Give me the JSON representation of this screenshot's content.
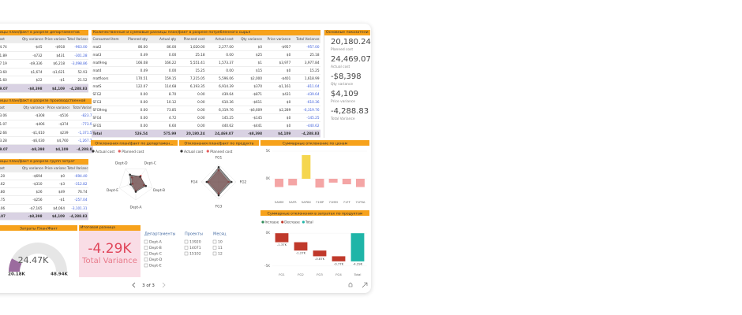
{
  "tables": [
    {
      "title": "ицы план/факт в разрезе департаментов",
      "columns": [
        "ost",
        "Qty variance",
        "Price variance",
        "Total Variance"
      ],
      "rows": [
        [
          "4.74",
          "-$45",
          "-$918",
          "-963.00"
        ],
        [
          "1.89",
          "-$732",
          "$431",
          "-301.28"
        ],
        [
          "7.19",
          "-$9,336",
          "$6,218",
          "-3,098.86"
        ],
        [
          "3.60",
          "$1,674",
          "-$1,621",
          "52.93"
        ],
        [
          "1.60",
          "$22",
          "-$1",
          "21.52"
        ]
      ],
      "total": [
        "9.07",
        "-$8,398",
        "$4,109",
        "-4,288.83"
      ]
    },
    {
      "title": "ицы план/факт в разрезе производственной",
      "columns": [
        "ost",
        "Qty variance ▼",
        "Price variance",
        "Total Varian"
      ],
      "rows": [
        [
          "3.06",
          "-$308",
          "-$516",
          "-823.7"
        ],
        [
          "1.07",
          "-$406",
          "-$374",
          "-773.9"
        ],
        [
          "2.66",
          "-$1,610",
          "$239",
          "-1,371.5"
        ],
        [
          "3.28",
          "-$6,030",
          "$4,760",
          "-1,267.7"
        ]
      ],
      "total": [
        "9.07",
        "-$8,398",
        "$4,109",
        "-4,288.8"
      ]
    },
    {
      "title": "ицы план/факт в разрезе групп затрат",
      "columns": [
        "ost",
        "Qty variance",
        "Price variance",
        "Total Variance"
      ],
      "rows": [
        [
          ".20",
          "-$694",
          "$0",
          "-694.40"
        ],
        [
          ".62",
          "-$310",
          "-$3",
          "-312.82"
        ],
        [
          ".80",
          "$26",
          "$49",
          "76.74"
        ],
        [
          ".75",
          "-$256",
          "-$1",
          "-257.04"
        ],
        [
          ".06",
          "-$7,165",
          "$4,064",
          "-3,101.31"
        ]
      ],
      "total": [
        ".07",
        "-$8,398",
        "$4,109",
        "-4,288.83"
      ]
    },
    {
      "title": "Количественные и суммовые разницы план/факт в разрезе потребленного сырья",
      "columns": [
        "Consumed item number",
        "Planned qty",
        "Actual qty",
        "Planned cost",
        "Actual cost",
        "Qty variance",
        "Price variance",
        "Total Variance"
      ],
      "rows": [
        [
          "mat2",
          "86.00",
          "86.00",
          "1,020.00",
          "2,277.00",
          "$0",
          "-$957",
          "-957.00"
        ],
        [
          "mat3",
          "0.49",
          "0.00",
          "25.18",
          "0.00",
          "$25",
          "$0",
          "25.18"
        ],
        [
          "mat9reg",
          "166.08",
          "166.22",
          "5,551.41",
          "1,573.37",
          "$1",
          "$3,977",
          "3,977.84"
        ],
        [
          "mat4",
          "0.49",
          "0.00",
          "15.25",
          "0.00",
          "$15",
          "$0",
          "15.25"
        ],
        [
          "matfloors",
          "170.51",
          "159.15",
          "7,215.05",
          "5,596.06",
          "$2,000",
          "-$401",
          "1,618.99"
        ],
        [
          "matS",
          "122.07",
          "114.68",
          "6,193.35",
          "6,914.39",
          "$370",
          "-$1,161",
          "-811.04"
        ],
        [
          "SFG2",
          "0.00",
          "8.70",
          "0.00",
          "439.64",
          "-$871",
          "$431",
          "-439.64"
        ],
        [
          "SFG3",
          "0.00",
          "10.12",
          "0.00",
          "610.36",
          "-$611",
          "$0",
          "-610.36"
        ],
        [
          "SFG9reg",
          "0.00",
          "73.85",
          "0.00",
          "6,319.76",
          "-$6,609",
          "$2,289",
          "-6,319.76"
        ],
        [
          "SFG4",
          "0.00",
          "4.72",
          "0.00",
          "145.25",
          "-$145",
          "$0",
          "-145.25"
        ],
        [
          "SFG5",
          "0.00",
          "6.60",
          "0.00",
          "440.62",
          "-$441",
          "$0",
          "-440.62"
        ]
      ],
      "total": [
        "Total",
        "526.54",
        "575.99",
        "20,180.24",
        "24,469.07",
        "-$8,398",
        "$4,109",
        "-4,288.83"
      ]
    }
  ],
  "kpi": {
    "title": "Основные показатели",
    "items": [
      {
        "value": "20,180.24",
        "label": "Planned cost"
      },
      {
        "value": "24,469.07",
        "label": "Actual cost"
      },
      {
        "value": "-$8,398",
        "label": "Qty variance"
      },
      {
        "value": "$4,109",
        "label": "Price variance"
      },
      {
        "value": "-4,288.83",
        "label": "Total Variance"
      }
    ]
  },
  "chart_data": [
    {
      "type": "radar",
      "title": "Отклонения план/факт по департамен...",
      "categories": [
        "Dept-A",
        "Dept-B",
        "Dept-C",
        "Dept-D",
        "Dept-E"
      ],
      "series": [
        {
          "name": "Actual cost",
          "color": "#333333",
          "values": [
            5200,
            6100,
            4300,
            5700,
            3169
          ]
        },
        {
          "name": "Planned cost",
          "color": "#e35b5b",
          "values": [
            4700,
            4900,
            4800,
            3800,
            1980
          ]
        }
      ],
      "rlim": [
        0,
        10000
      ]
    },
    {
      "type": "radar",
      "title": "Отклонения план/факт по продукта",
      "categories": [
        "FG1",
        "FG2",
        "FG3",
        "FG4"
      ],
      "series": [
        {
          "name": "Actual cost",
          "color": "#333333",
          "values": [
            6800,
            5900,
            6200,
            5500
          ]
        },
        {
          "name": "Planned cost",
          "color": "#e35b5b",
          "values": [
            5400,
            4600,
            5300,
            4800
          ]
        }
      ],
      "rlim": [
        0,
        8000
      ]
    },
    {
      "type": "bar",
      "title": "Суммарные отклонение по ценам",
      "categories": [
        "5AMM",
        "5AFR",
        "5AP8X",
        "71MP",
        "71MM",
        "71FF",
        "71FRA"
      ],
      "values": [
        -1500,
        -1200,
        4300,
        -1600,
        -700,
        -1000,
        -1500
      ],
      "positive_color": "#f5d64e",
      "negative_color": "#f4a5a5",
      "ylim": [
        -3000,
        5000
      ],
      "yticks": [
        {
          "value": 5000,
          "label": "5K"
        },
        {
          "value": 0,
          "label": "0K"
        }
      ]
    },
    {
      "type": "waterfall",
      "title": "Суммарные отклонения в затратах по продуктам",
      "legend": [
        {
          "name": "Increase",
          "color": "#2e8b57"
        },
        {
          "name": "Decrease",
          "color": "#c0392b"
        },
        {
          "name": "Total",
          "color": "#1fb5a8"
        }
      ],
      "categories": [
        "FG1",
        "FG2",
        "FG3",
        "FG4",
        "Total"
      ],
      "values": [
        -1370,
        -1270,
        -870,
        -770,
        -4288.83
      ],
      "value_labels": [
        "-1.37K",
        "-1.27K",
        "-0.87K",
        "-0.77K",
        "-4.29K"
      ],
      "ylim": [
        -5500,
        500
      ],
      "yticks": [
        {
          "value": 0,
          "label": "0K"
        },
        {
          "value": -5000,
          "label": "-5K"
        }
      ]
    },
    {
      "type": "gauge",
      "title": "Затраты План/Факт",
      "value": 24469.07,
      "value_label": "24.47K",
      "min": 20180.24,
      "min_label": "20.18K",
      "max": 48938.14,
      "max_label": "48.94K",
      "color": "#9b6b9e"
    }
  ],
  "total_variance": {
    "title": "Итоговая разница",
    "value": "-4.29K",
    "label": "Total Variance"
  },
  "slicers": [
    {
      "title": "Департаменты",
      "items": [
        "Dept-A",
        "Dept-B",
        "Dept-C",
        "Dept-D",
        "Dept-E"
      ]
    },
    {
      "title": "Проекты",
      "items": [
        "13920",
        "14071",
        "15102"
      ]
    },
    {
      "title": "Месяц",
      "items": [
        "10",
        "11",
        "12"
      ]
    }
  ],
  "pager": {
    "label": "3 of 3"
  }
}
